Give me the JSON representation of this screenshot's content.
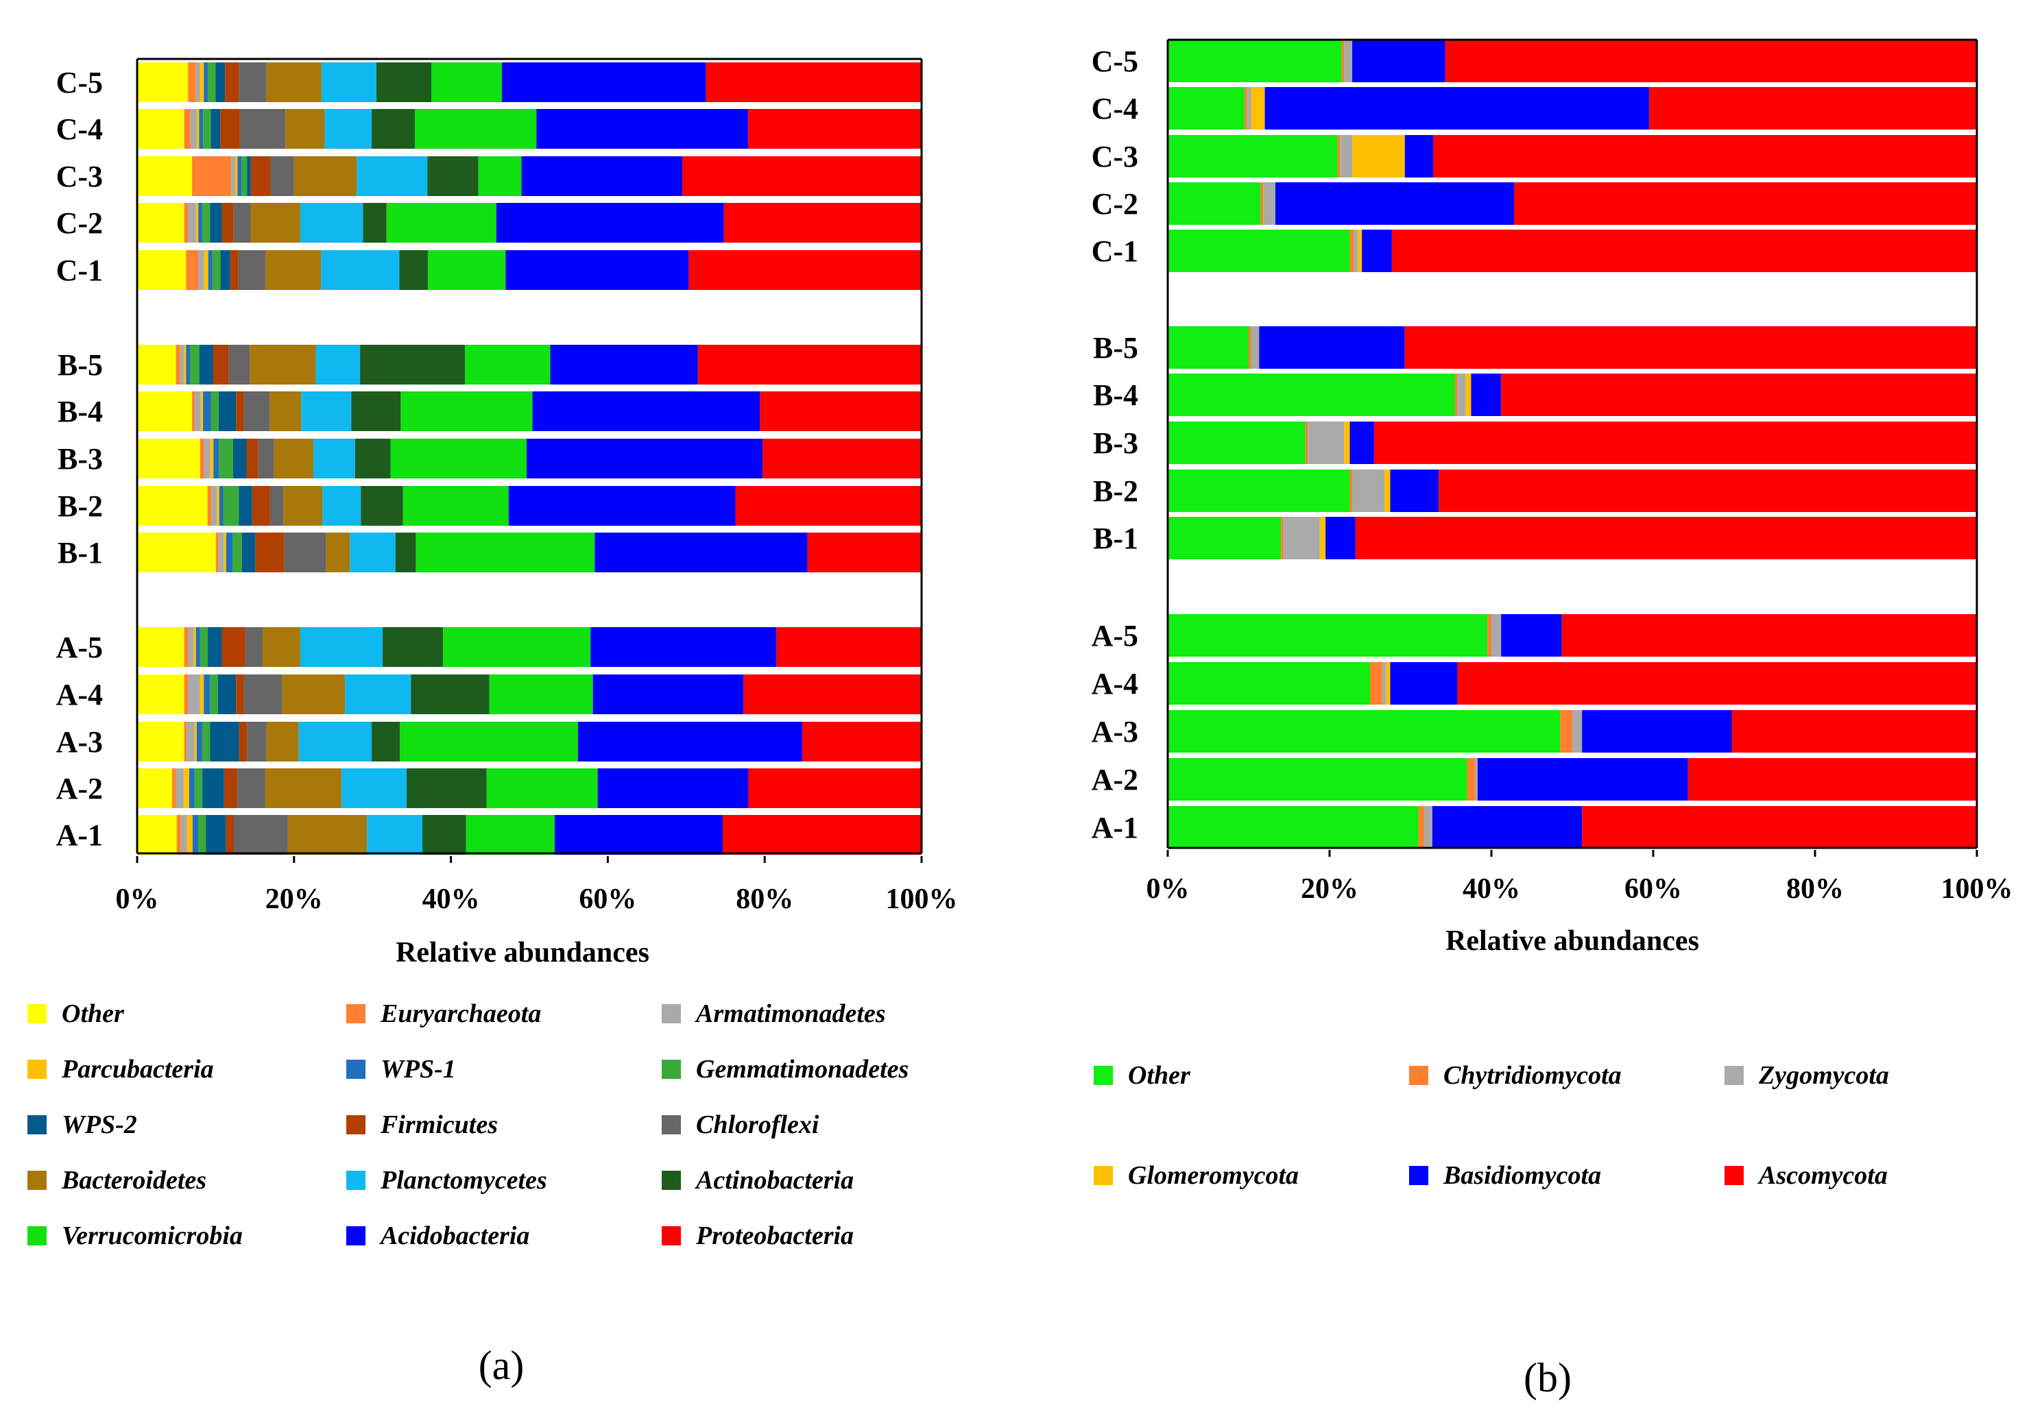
{
  "chart_data": [
    {
      "type": "bar",
      "orientation": "horizontal",
      "stacked": true,
      "panel_label": "(a)",
      "xlabel": "Relative abundances",
      "ylabel": "",
      "xlim": [
        0,
        100
      ],
      "x_ticks": [
        "0%",
        "20%",
        "40%",
        "60%",
        "80%",
        "100%"
      ],
      "categories": [
        "C-5",
        "C-4",
        "C-3",
        "C-2",
        "C-1",
        "B-5",
        "B-4",
        "B-3",
        "B-2",
        "B-1",
        "A-5",
        "A-4",
        "A-3",
        "A-2",
        "A-1"
      ],
      "series": [
        {
          "name": "Other",
          "color": "#FFFF00",
          "values": [
            6.5,
            6,
            7,
            6,
            6,
            5,
            7,
            8,
            9,
            10,
            6,
            6,
            6,
            4.5,
            5
          ]
        },
        {
          "name": "Euryarchaeota",
          "color": "#FF8030",
          "values": [
            1,
            0.8,
            5,
            0.5,
            1.5,
            0.5,
            0.3,
            0.5,
            0.5,
            0.3,
            0.5,
            0.5,
            0.3,
            0.5,
            0.5
          ]
        },
        {
          "name": "Armatimonadetes",
          "color": "#AAAAAA",
          "values": [
            0.5,
            0.8,
            0.5,
            1,
            0.7,
            0.5,
            0.8,
            0.8,
            0.7,
            0.7,
            0.7,
            1.5,
            1,
            1,
            0.8
          ]
        },
        {
          "name": "Parcubacteria",
          "color": "#FFC000",
          "values": [
            0.5,
            0.3,
            0.3,
            0.3,
            0.5,
            0.3,
            0.3,
            0.4,
            0.3,
            0.3,
            0.3,
            0.5,
            0.3,
            0.7,
            0.7
          ]
        },
        {
          "name": "WPS-1",
          "color": "#1F6FC0",
          "values": [
            0.5,
            0.5,
            0.5,
            0.5,
            0.5,
            0.5,
            1,
            0.7,
            0.5,
            0.8,
            0.5,
            0.8,
            0.7,
            0.7,
            0.7
          ]
        },
        {
          "name": "Gemmatimonadetes",
          "color": "#3BAA3B",
          "values": [
            1,
            1,
            0.7,
            1,
            1,
            1.2,
            1,
            1.8,
            2,
            1.2,
            1,
            1,
            1,
            1,
            1
          ]
        },
        {
          "name": "WPS-2",
          "color": "#005A8C",
          "values": [
            1.2,
            1.2,
            0.5,
            1.5,
            1.2,
            1.8,
            2.2,
            1.7,
            1.7,
            1.7,
            1.8,
            2.3,
            3.7,
            2.8,
            2.5
          ]
        },
        {
          "name": "Firmicutes",
          "color": "#B04000",
          "values": [
            1.8,
            2.5,
            2.5,
            1.5,
            1,
            2,
            1,
            1.5,
            2.3,
            3.7,
            3,
            1,
            1,
            1.7,
            1
          ]
        },
        {
          "name": "Chloroflexi",
          "color": "#666666",
          "values": [
            3.5,
            5.8,
            3,
            2.2,
            3.3,
            2.7,
            3.3,
            2,
            1.7,
            5.3,
            2.2,
            4.9,
            2.5,
            3.6,
            6.8
          ]
        },
        {
          "name": "Bacteroidetes",
          "color": "#A8780A",
          "values": [
            7,
            5,
            8,
            6.3,
            6.8,
            8.5,
            4,
            5,
            5,
            3,
            4.8,
            8,
            4.1,
            9.8,
            10
          ]
        },
        {
          "name": "Planctomycetes",
          "color": "#10B8F0",
          "values": [
            7,
            6,
            9,
            8,
            9.6,
            5.7,
            6.4,
            5.3,
            4.9,
            5.8,
            10.5,
            8.4,
            9.3,
            8.4,
            7
          ]
        },
        {
          "name": "Actinobacteria",
          "color": "#1E5C1E",
          "values": [
            7,
            5.5,
            6.5,
            3,
            3.5,
            13.5,
            6.3,
            4.5,
            5.4,
            2.6,
            7.7,
            10,
            3.6,
            10.3,
            5.5
          ]
        },
        {
          "name": "Verrucomicrobia",
          "color": "#11E011",
          "values": [
            9,
            15.5,
            5.5,
            14,
            9.5,
            11,
            16.8,
            17.3,
            13.5,
            22.7,
            18.8,
            13.2,
            22.7,
            14.3,
            11.2
          ]
        },
        {
          "name": "Acidobacteria",
          "color": "#0000FF",
          "values": [
            26,
            27,
            20.5,
            29,
            22.4,
            19,
            29,
            30,
            29,
            27,
            23.7,
            19.2,
            28.6,
            19.4,
            21.2
          ]
        },
        {
          "name": "Proteobacteria",
          "color": "#FF0000",
          "values": [
            27.5,
            22.1,
            30.5,
            25.2,
            28.5,
            28.8,
            20.6,
            20.2,
            23.8,
            14.5,
            18.5,
            22.7,
            15.2,
            22.3,
            25.1
          ]
        }
      ]
    },
    {
      "type": "bar",
      "orientation": "horizontal",
      "stacked": true,
      "panel_label": "(b)",
      "xlabel": "Relative abundances",
      "ylabel": "",
      "xlim": [
        0,
        100
      ],
      "x_ticks": [
        "0%",
        "20%",
        "40%",
        "60%",
        "80%",
        "100%"
      ],
      "categories": [
        "C-5",
        "C-4",
        "C-3",
        "C-2",
        "C-1",
        "B-5",
        "B-4",
        "B-3",
        "B-2",
        "B-1",
        "A-5",
        "A-4",
        "A-3",
        "A-2",
        "A-1"
      ],
      "series": [
        {
          "name": "Other",
          "color": "#11EE11",
          "values": [
            21.5,
            9.5,
            21,
            11.5,
            22.5,
            10,
            35.5,
            17,
            22.5,
            14,
            39.5,
            25,
            48.5,
            37,
            31
          ]
        },
        {
          "name": "Chytridiomycota",
          "color": "#FF8030",
          "values": [
            0.3,
            0.3,
            0.3,
            0.3,
            0.5,
            0.3,
            0.3,
            0.3,
            0.3,
            0.3,
            0.5,
            1.5,
            1.5,
            1,
            0.7
          ]
        },
        {
          "name": "Zygomycota",
          "color": "#AAAAAA",
          "values": [
            1,
            0.5,
            1.5,
            1.5,
            0.5,
            1,
            1,
            4.5,
            4,
            4.5,
            1.2,
            0.5,
            1.2,
            0.3,
            1
          ]
        },
        {
          "name": "Glomeromycota",
          "color": "#FFC000",
          "values": [
            0,
            1.7,
            6.5,
            0,
            0.5,
            0,
            0.7,
            0.7,
            0.7,
            0.7,
            0,
            0.5,
            0,
            0,
            0
          ]
        },
        {
          "name": "Basidiomycota",
          "color": "#0000FF",
          "values": [
            11.5,
            47.5,
            3.5,
            29.5,
            3.7,
            18,
            3.7,
            3,
            6,
            3.7,
            7.5,
            8.3,
            18.5,
            26,
            18.5
          ]
        },
        {
          "name": "Ascomycota",
          "color": "#FF0000",
          "values": [
            65.7,
            40.5,
            67.2,
            57.2,
            72.3,
            70.7,
            58.8,
            74.5,
            66.5,
            76.8,
            51.3,
            64.2,
            30.3,
            35.7,
            48.8
          ]
        }
      ]
    }
  ]
}
